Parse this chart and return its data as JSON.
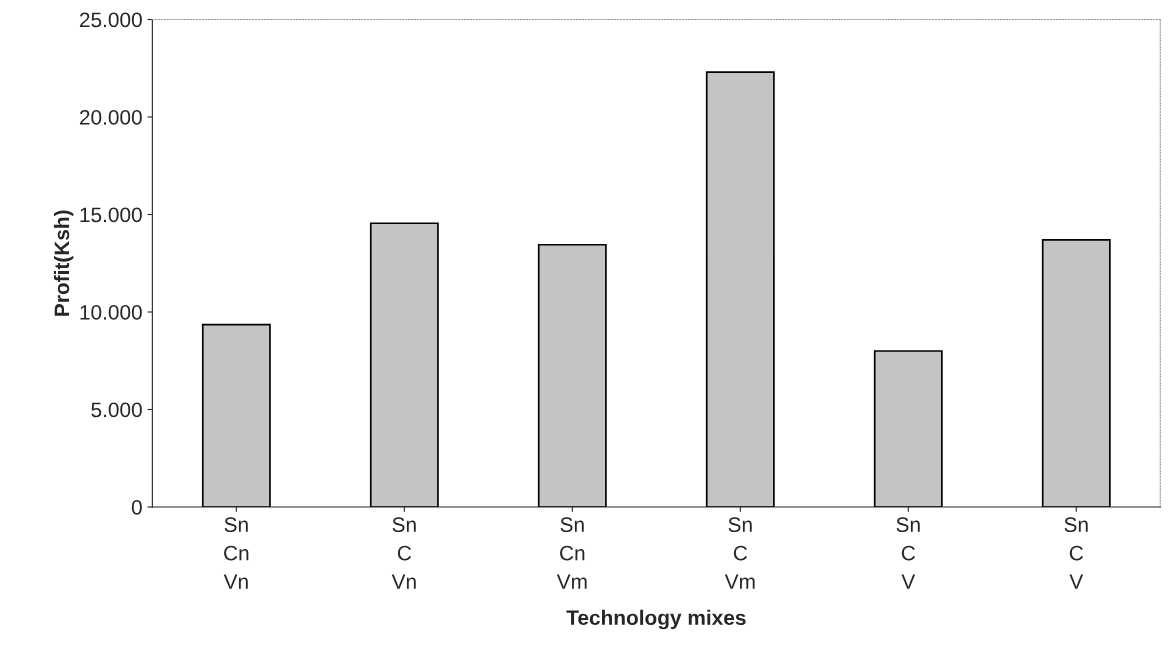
{
  "chart_data": {
    "type": "bar",
    "xlabel": "Technology mixes",
    "ylabel": "Profit(Ksh)",
    "categories": [
      "Sn\nCn\nVn",
      "Sn\nC\nVn",
      "Sn\nCn\nVm",
      "Sn\nC\nVm",
      "Sn\nC\nV",
      "Sn\nC\nV"
    ],
    "values": [
      9350,
      14550,
      13450,
      22300,
      8000,
      13700
    ],
    "color": "#c4c4c4",
    "ylim": [
      0,
      25000
    ],
    "yticks": [
      0,
      {
        "value": 5000,
        "label": "5.000"
      },
      {
        "value": 10000,
        "label": "10.000"
      },
      {
        "value": 15000,
        "label": "15.000"
      },
      {
        "value": 20000,
        "label": "20.000"
      },
      {
        "value": 25000,
        "label": "25.000"
      }
    ],
    "grid": false,
    "legend": false
  }
}
